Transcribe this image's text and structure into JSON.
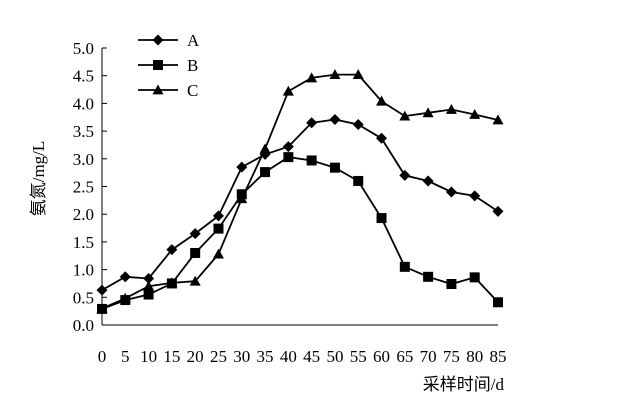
{
  "chart_data": {
    "type": "line",
    "title": "",
    "xlabel": "采样时间/d",
    "ylabel": "氨氮/mg/L",
    "xlim": [
      0,
      85
    ],
    "ylim": [
      0,
      5
    ],
    "x_ticks": [
      "0",
      "5",
      "10",
      "15",
      "20",
      "25",
      "30",
      "35",
      "40",
      "45",
      "50",
      "55",
      "60",
      "65",
      "70",
      "75",
      "80",
      "85"
    ],
    "y_ticks": [
      "0.0",
      "0.5",
      "1.0",
      "1.5",
      "2.0",
      "2.5",
      "3.0",
      "3.5",
      "4.0",
      "4.5",
      "5.0"
    ],
    "grid": false,
    "legend_position": "top-left",
    "x": [
      0,
      5,
      10,
      15,
      20,
      25,
      30,
      35,
      40,
      45,
      50,
      55,
      60,
      65,
      70,
      75,
      80,
      85
    ],
    "series": [
      {
        "name": "A",
        "marker": "diamond",
        "values": [
          0.63,
          0.87,
          0.84,
          1.36,
          1.65,
          1.97,
          2.85,
          3.08,
          3.22,
          3.65,
          3.71,
          3.62,
          3.37,
          2.7,
          2.6,
          2.4,
          2.33,
          2.05
        ]
      },
      {
        "name": "B",
        "marker": "square",
        "values": [
          0.29,
          0.45,
          0.55,
          0.75,
          1.3,
          1.74,
          2.36,
          2.76,
          3.03,
          2.97,
          2.84,
          2.6,
          1.93,
          1.05,
          0.87,
          0.74,
          0.86,
          0.41
        ]
      },
      {
        "name": "C",
        "marker": "triangle",
        "values": [
          0.3,
          0.48,
          0.7,
          0.76,
          0.79,
          1.28,
          2.28,
          3.18,
          4.22,
          4.46,
          4.52,
          4.52,
          4.04,
          3.77,
          3.83,
          3.89,
          3.8,
          3.7
        ]
      }
    ],
    "colors": {
      "line": "#000000",
      "marker": "#000000",
      "axis": "#000000",
      "background": "#ffffff"
    }
  }
}
